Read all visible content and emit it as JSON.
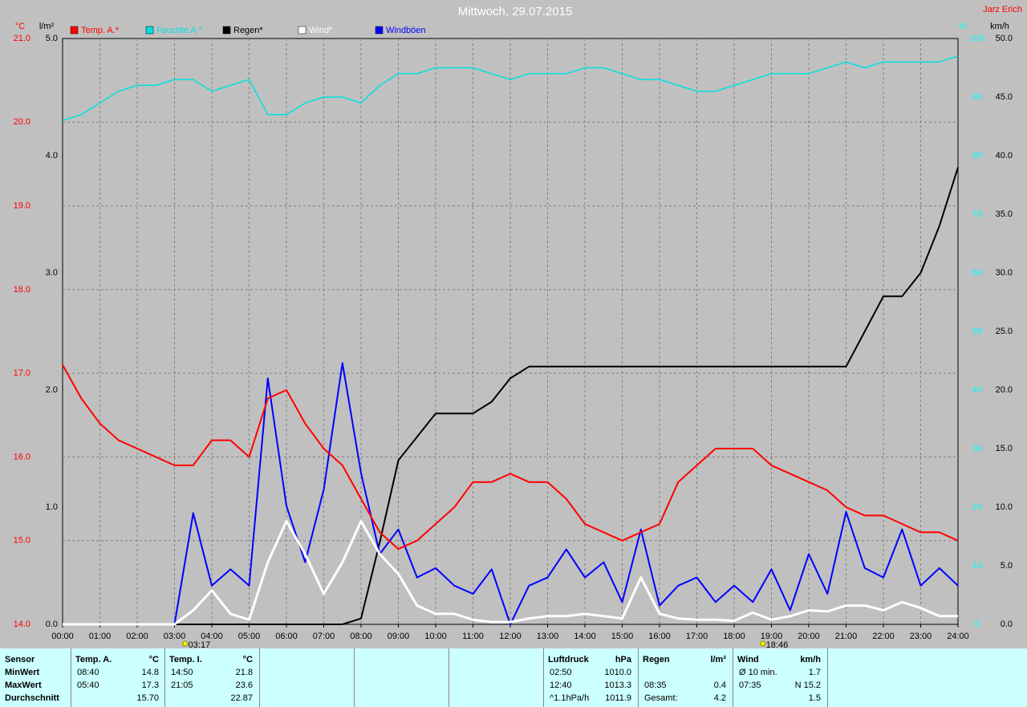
{
  "chart_data": {
    "type": "line",
    "title": "Mittwoch, 29.07.2015",
    "author": "Jarz Erich",
    "grid": true,
    "xlim": [
      0,
      24
    ],
    "xticks": [
      {
        "value": 0,
        "label": "00:00"
      },
      {
        "value": 1,
        "label": "01:00"
      },
      {
        "value": 2,
        "label": "02:00"
      },
      {
        "value": 3,
        "label": "03:00"
      },
      {
        "value": 4,
        "label": "04:00"
      },
      {
        "value": 5,
        "label": "05:00"
      },
      {
        "value": 6,
        "label": "06:00"
      },
      {
        "value": 7,
        "label": "07:00"
      },
      {
        "value": 8,
        "label": "08:00"
      },
      {
        "value": 9,
        "label": "09:00"
      },
      {
        "value": 10,
        "label": "10:00"
      },
      {
        "value": 11,
        "label": "11:00"
      },
      {
        "value": 12,
        "label": "12:00"
      },
      {
        "value": 13,
        "label": "13:00"
      },
      {
        "value": 14,
        "label": "14:00"
      },
      {
        "value": 15,
        "label": "15:00"
      },
      {
        "value": 16,
        "label": "16:00"
      },
      {
        "value": 17,
        "label": "17:00"
      },
      {
        "value": 18,
        "label": "18:00"
      },
      {
        "value": 19,
        "label": "19:00"
      },
      {
        "value": 20,
        "label": "20:00"
      },
      {
        "value": 21,
        "label": "21:00"
      },
      {
        "value": 22,
        "label": "22:00"
      },
      {
        "value": 23,
        "label": "23:00"
      },
      {
        "value": 24,
        "label": "24:00"
      }
    ],
    "sun_markers": [
      {
        "value": 3.283,
        "label": "03:17"
      },
      {
        "value": 18.767,
        "label": "18:46"
      }
    ],
    "axes": [
      {
        "unit": "°C",
        "side": "left",
        "color": "#ff0000",
        "lim": [
          14,
          21
        ],
        "ticks": [
          {
            "value": 14,
            "label": "14.0"
          },
          {
            "value": 15,
            "label": "15.0"
          },
          {
            "value": 16,
            "label": "16.0"
          },
          {
            "value": 17,
            "label": "17.0"
          },
          {
            "value": 18,
            "label": "18.0"
          },
          {
            "value": 19,
            "label": "19.0"
          },
          {
            "value": 20,
            "label": "20.0"
          },
          {
            "value": 21,
            "label": "21.0"
          }
        ]
      },
      {
        "unit": "l/m²",
        "side": "left",
        "color": "#000000",
        "lim": [
          0,
          5
        ],
        "ticks": [
          {
            "value": 0,
            "label": "0.0"
          },
          {
            "value": 1,
            "label": "1.0"
          },
          {
            "value": 2,
            "label": "2.0"
          },
          {
            "value": 3,
            "label": "3.0"
          },
          {
            "value": 4,
            "label": "4.0"
          },
          {
            "value": 5,
            "label": "5.0"
          }
        ]
      },
      {
        "unit": "%",
        "side": "right",
        "color": "#00ffff",
        "lim": [
          0,
          100
        ],
        "ticks": [
          0,
          10,
          20,
          30,
          40,
          50,
          60,
          70,
          80,
          90,
          100
        ]
      },
      {
        "unit": "km/h",
        "side": "right",
        "color": "#000000",
        "lim": [
          0,
          50
        ],
        "ticks": [
          {
            "value": 0,
            "label": "0.0"
          },
          {
            "value": 5,
            "label": "5.0"
          },
          {
            "value": 10,
            "label": "10.0"
          },
          {
            "value": 15,
            "label": "15.0"
          },
          {
            "value": 20,
            "label": "20.0"
          },
          {
            "value": 25,
            "label": "25.0"
          },
          {
            "value": 30,
            "label": "30.0"
          },
          {
            "value": 35,
            "label": "35.0"
          },
          {
            "value": 40,
            "label": "40.0"
          },
          {
            "value": 45,
            "label": "45.0"
          },
          {
            "value": 50,
            "label": "50.0"
          }
        ]
      }
    ],
    "x": [
      0,
      0.5,
      1,
      1.5,
      2,
      2.5,
      3,
      3.5,
      4,
      4.5,
      5,
      5.5,
      6,
      6.5,
      7,
      7.5,
      8,
      8.5,
      9,
      9.5,
      10,
      10.5,
      11,
      11.5,
      12,
      12.5,
      13,
      13.5,
      14,
      14.5,
      15,
      15.5,
      16,
      16.5,
      17,
      17.5,
      18,
      18.5,
      19,
      19.5,
      20,
      20.5,
      21,
      21.5,
      22,
      22.5,
      23,
      23.5,
      24
    ],
    "series": [
      {
        "name": "Temp. A.*",
        "color": "#ff0000",
        "axis": 0,
        "width": 2,
        "values": [
          17.1,
          16.7,
          16.4,
          16.2,
          16.1,
          16.0,
          15.9,
          15.9,
          16.2,
          16.2,
          16.0,
          16.7,
          16.8,
          16.4,
          16.1,
          15.9,
          15.5,
          15.1,
          14.9,
          15.0,
          15.2,
          15.4,
          15.7,
          15.7,
          15.8,
          15.7,
          15.7,
          15.5,
          15.2,
          15.1,
          15.0,
          15.1,
          15.2,
          15.7,
          15.9,
          16.1,
          16.1,
          16.1,
          15.9,
          15.8,
          15.7,
          15.6,
          15.4,
          15.3,
          15.3,
          15.2,
          15.1,
          15.1,
          15.0
        ]
      },
      {
        "name": "Feuchte A.*",
        "color": "#00e0e0",
        "axis": 2,
        "width": 1.5,
        "values": [
          86,
          87,
          89,
          91,
          92,
          92,
          93,
          93,
          91,
          92,
          93,
          87,
          87,
          89,
          90,
          90,
          89,
          92,
          94,
          94,
          95,
          95,
          95,
          94,
          93,
          94,
          94,
          94,
          95,
          95,
          94,
          93,
          93,
          92,
          91,
          91,
          92,
          93,
          94,
          94,
          94,
          95,
          96,
          95,
          96,
          96,
          96,
          96,
          97
        ]
      },
      {
        "name": "Regen*",
        "color": "#000000",
        "axis": 1,
        "width": 2,
        "values": [
          0,
          0,
          0,
          0,
          0,
          0,
          0,
          0,
          0,
          0,
          0,
          0,
          0,
          0,
          0,
          0,
          0.05,
          0.7,
          1.4,
          1.6,
          1.8,
          1.8,
          1.8,
          1.9,
          2.1,
          2.2,
          2.2,
          2.2,
          2.2,
          2.2,
          2.2,
          2.2,
          2.2,
          2.2,
          2.2,
          2.2,
          2.2,
          2.2,
          2.2,
          2.2,
          2.2,
          2.2,
          2.2,
          2.5,
          2.8,
          2.8,
          3.0,
          3.4,
          3.9
        ]
      },
      {
        "name": "Wind*",
        "color": "#ffffff",
        "axis": 3,
        "width": 3,
        "values": [
          0,
          0,
          0,
          0,
          0,
          0,
          0,
          1.2,
          2.9,
          0.9,
          0.4,
          5.3,
          8.8,
          6.0,
          2.6,
          5.3,
          8.8,
          6.0,
          4.3,
          1.6,
          0.9,
          0.9,
          0.4,
          0.2,
          0.2,
          0.5,
          0.7,
          0.7,
          0.9,
          0.7,
          0.5,
          4.0,
          0.9,
          0.5,
          0.4,
          0.4,
          0.3,
          1.0,
          0.4,
          0.7,
          1.2,
          1.1,
          1.6,
          1.6,
          1.2,
          1.9,
          1.4,
          0.7,
          0.7
        ]
      },
      {
        "name": "Windböen",
        "color": "#0000ff",
        "axis": 3,
        "width": 2,
        "values": [
          0,
          0,
          0,
          0,
          0,
          0,
          0,
          9.5,
          3.3,
          4.7,
          3.3,
          21,
          10.1,
          5.3,
          11.5,
          22.3,
          12.9,
          6.0,
          8.1,
          4.0,
          4.8,
          3.3,
          2.6,
          4.7,
          0,
          3.3,
          4.0,
          6.4,
          4.0,
          5.3,
          1.9,
          8.1,
          1.6,
          3.3,
          4.0,
          1.9,
          3.3,
          1.9,
          4.7,
          1.2,
          6.0,
          2.6,
          9.6,
          4.8,
          4.0,
          8.1,
          3.3,
          4.8,
          3.3
        ]
      }
    ]
  },
  "stats": {
    "header": "Sensor",
    "row_labels": [
      "MinWert",
      "MaxWert",
      "Durchschnitt"
    ],
    "groups": [
      {
        "name": "Temp. A.",
        "unit": "°C",
        "rows": [
          [
            "08:40",
            "14.8"
          ],
          [
            "05:40",
            "17.3"
          ],
          [
            null,
            "15.70"
          ]
        ]
      },
      {
        "name": "Temp. I.",
        "unit": "°C",
        "rows": [
          [
            "14:50",
            "21.8"
          ],
          [
            "21:05",
            "23.6"
          ],
          [
            null,
            "22.87"
          ]
        ]
      },
      {
        "name": "Luftdruck",
        "unit": "hPa",
        "rows": [
          [
            "02:50",
            "1010.0"
          ],
          [
            "12:40",
            "1013.3"
          ],
          [
            "^1.1hPa/h",
            "1011.9"
          ]
        ]
      },
      {
        "name": "Regen",
        "unit": "l/m²",
        "rows": [
          [
            null,
            null
          ],
          [
            "08:35",
            "0.4"
          ],
          [
            "Gesamt:",
            "4.2"
          ]
        ]
      },
      {
        "name": "Wind",
        "unit": "km/h",
        "rows": [
          [
            "Ø 10 min.",
            "1.7"
          ],
          [
            "07:35",
            "N 15.2"
          ],
          [
            null,
            "1.5"
          ]
        ]
      }
    ]
  }
}
